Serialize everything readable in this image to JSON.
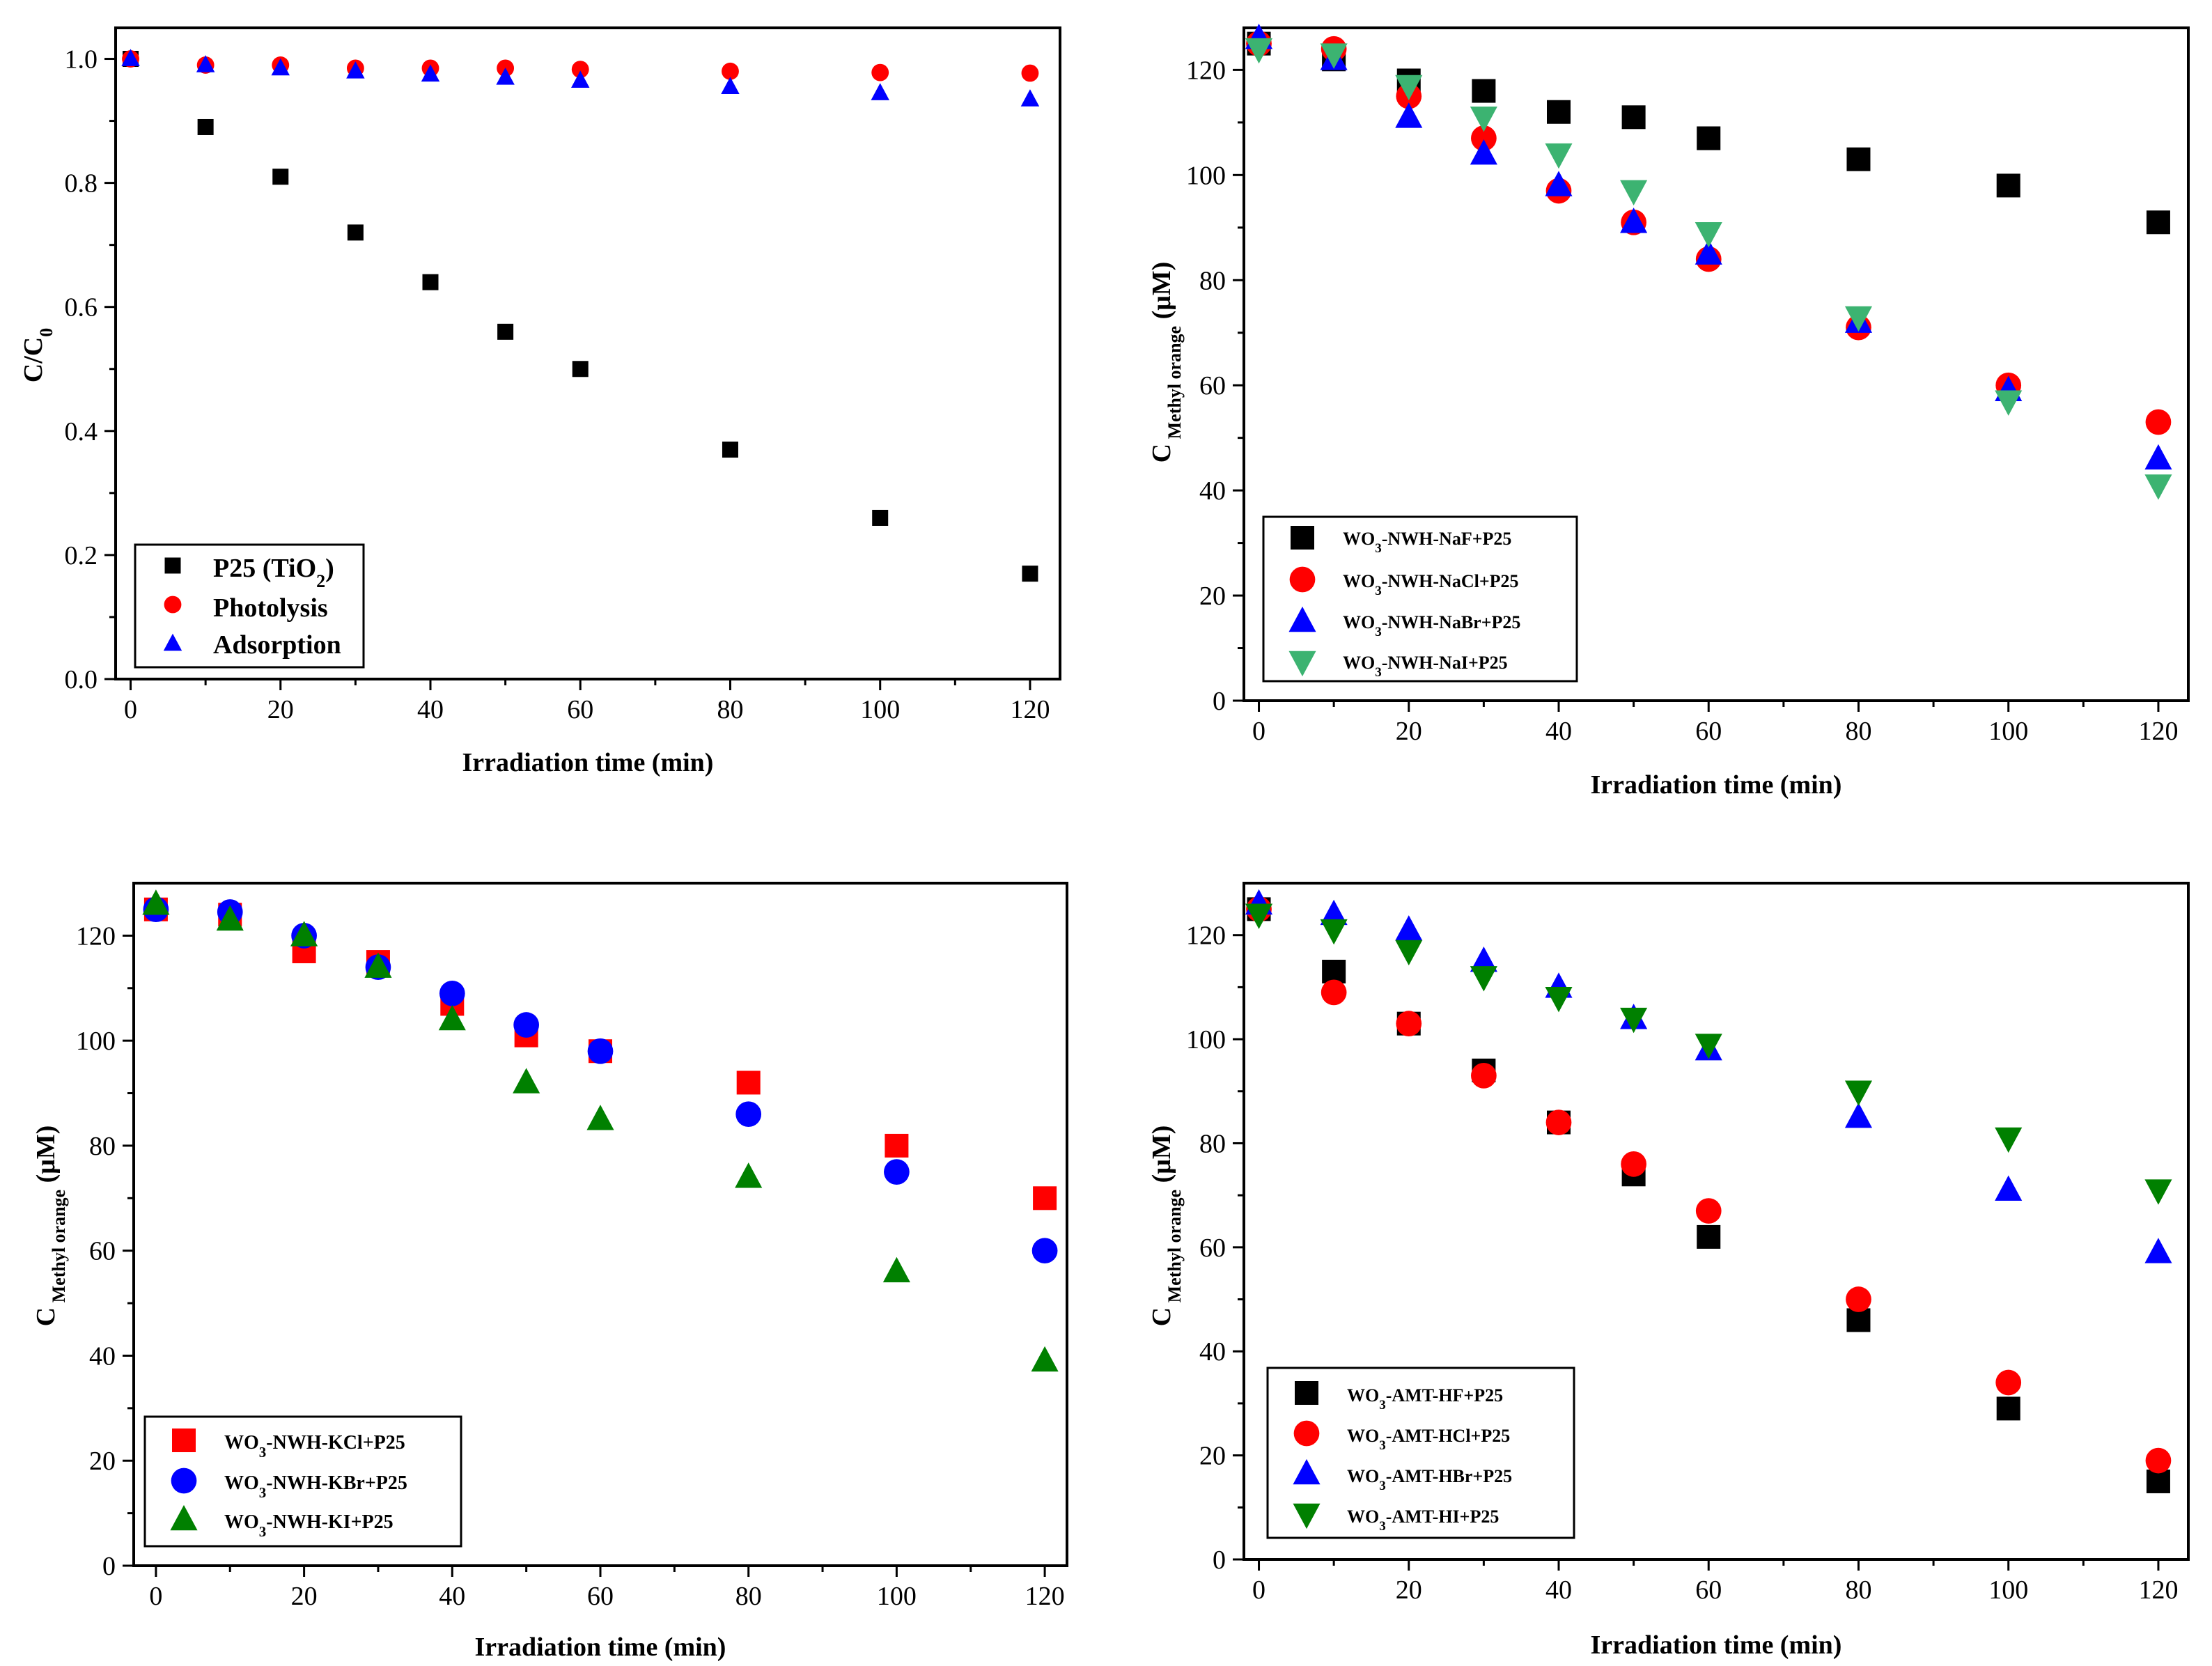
{
  "chart_data": [
    {
      "type": "scatter",
      "id": "a",
      "xlabel": "Irradiation time (min)",
      "ylabel": "C/C0",
      "xlim": [
        -2,
        124
      ],
      "ylim": [
        0,
        1.05
      ],
      "xticks": [
        0,
        20,
        40,
        60,
        80,
        100,
        120
      ],
      "yticks": [
        0.0,
        0.2,
        0.4,
        0.6,
        0.8,
        1.0
      ],
      "ydecimals": 1,
      "legend_position": "bottom-left",
      "series": [
        {
          "name": "P25 (TiO2)",
          "marker": "square",
          "color": "#000000",
          "x": [
            0,
            10,
            20,
            30,
            40,
            50,
            60,
            80,
            100,
            120
          ],
          "y": [
            1.0,
            0.89,
            0.81,
            0.72,
            0.64,
            0.56,
            0.5,
            0.37,
            0.26,
            0.17
          ]
        },
        {
          "name": "Photolysis",
          "marker": "circle",
          "color": "#ff0000",
          "x": [
            0,
            10,
            20,
            30,
            40,
            50,
            60,
            80,
            100,
            120
          ],
          "y": [
            1.0,
            0.99,
            0.99,
            0.985,
            0.985,
            0.985,
            0.983,
            0.98,
            0.978,
            0.977
          ]
        },
        {
          "name": "Adsorption",
          "marker": "triangle-up",
          "color": "#0000ff",
          "x": [
            0,
            10,
            20,
            30,
            40,
            50,
            60,
            80,
            100,
            120
          ],
          "y": [
            1.0,
            0.99,
            0.985,
            0.98,
            0.975,
            0.97,
            0.965,
            0.955,
            0.945,
            0.935
          ]
        }
      ]
    },
    {
      "type": "scatter",
      "id": "b",
      "xlabel": "Irradiation time (min)",
      "ylabel": "C Methyl orange (μM)",
      "xlim": [
        -2,
        124
      ],
      "ylim": [
        0,
        128
      ],
      "xticks": [
        0,
        20,
        40,
        60,
        80,
        100,
        120
      ],
      "yticks": [
        0,
        20,
        40,
        60,
        80,
        100,
        120
      ],
      "ydecimals": 0,
      "legend_position": "bottom-left",
      "series": [
        {
          "name": "WO3-NWH-NaF+P25",
          "marker": "square",
          "color": "#000000",
          "x": [
            0,
            10,
            20,
            30,
            40,
            50,
            60,
            80,
            100,
            120
          ],
          "y": [
            125,
            122,
            118,
            116,
            112,
            111,
            107,
            103,
            98,
            91
          ]
        },
        {
          "name": "WO3-NWH-NaCl+P25",
          "marker": "circle",
          "color": "#ff0000",
          "x": [
            0,
            10,
            20,
            30,
            40,
            50,
            60,
            80,
            100,
            120
          ],
          "y": [
            125,
            124,
            115,
            107,
            97,
            91,
            84,
            71,
            60,
            53
          ]
        },
        {
          "name": "WO3-NWH-NaBr+P25",
          "marker": "triangle-up",
          "color": "#0000ff",
          "x": [
            0,
            10,
            20,
            30,
            40,
            50,
            60,
            80,
            100,
            120
          ],
          "y": [
            126,
            122,
            111,
            104,
            98,
            91,
            85,
            72,
            59,
            46
          ]
        },
        {
          "name": "WO3-NWH-NaI+P25",
          "marker": "triangle-down",
          "color": "#3cb371",
          "x": [
            0,
            10,
            20,
            30,
            40,
            50,
            60,
            80,
            100,
            120
          ],
          "y": [
            124,
            123,
            117,
            111,
            104,
            97,
            89,
            73,
            57,
            41
          ]
        }
      ]
    },
    {
      "type": "scatter",
      "id": "c",
      "xlabel": "Irradiation time (min)",
      "ylabel": "C Methyl orange (μM)",
      "xlim": [
        -3,
        123
      ],
      "ylim": [
        0,
        130
      ],
      "xticks": [
        0,
        20,
        40,
        60,
        80,
        100,
        120
      ],
      "yticks": [
        0,
        20,
        40,
        60,
        80,
        100,
        120
      ],
      "ydecimals": 0,
      "legend_position": "bottom-left",
      "series": [
        {
          "name": "WO3-NWH-KCl+P25",
          "marker": "square",
          "color": "#ff0000",
          "x": [
            0,
            10,
            20,
            30,
            40,
            50,
            60,
            80,
            100,
            120
          ],
          "y": [
            125,
            124,
            117,
            115,
            107,
            101,
            98,
            92,
            80,
            70
          ]
        },
        {
          "name": "WO3-NWH-KBr+P25",
          "marker": "circle",
          "color": "#0000ff",
          "x": [
            0,
            10,
            20,
            30,
            40,
            50,
            60,
            80,
            100,
            120
          ],
          "y": [
            125,
            124.5,
            120,
            114,
            109,
            103,
            98,
            86,
            75,
            60
          ]
        },
        {
          "name": "WO3-NWH-KI+P25",
          "marker": "triangle-up",
          "color": "#008000",
          "x": [
            0,
            10,
            20,
            30,
            40,
            50,
            60,
            80,
            100,
            120
          ],
          "y": [
            126,
            123,
            120,
            114,
            104,
            92,
            85,
            74,
            56,
            39
          ]
        }
      ]
    },
    {
      "type": "scatter",
      "id": "d",
      "xlabel": "Irradiation time (min)",
      "ylabel": "C Methyl orange (μM)",
      "xlim": [
        -2,
        124
      ],
      "ylim": [
        0,
        130
      ],
      "xticks": [
        0,
        20,
        40,
        60,
        80,
        100,
        120
      ],
      "yticks": [
        0,
        20,
        40,
        60,
        80,
        100,
        120
      ],
      "ydecimals": 0,
      "legend_position": "bottom-left",
      "series": [
        {
          "name": "WO3-AMT-HF+P25",
          "marker": "square",
          "color": "#000000",
          "x": [
            0,
            10,
            20,
            30,
            40,
            50,
            60,
            80,
            100,
            120
          ],
          "y": [
            125,
            113,
            103,
            94,
            84,
            74,
            62,
            46,
            29,
            15
          ]
        },
        {
          "name": "WO3-AMT-HCl+P25",
          "marker": "circle",
          "color": "#ff0000",
          "x": [
            0,
            10,
            20,
            30,
            40,
            50,
            60,
            80,
            100,
            120
          ],
          "y": [
            125,
            109,
            103,
            93,
            84,
            76,
            67,
            50,
            34,
            19
          ]
        },
        {
          "name": "WO3-AMT-HBr+P25",
          "marker": "triangle-up",
          "color": "#0000ff",
          "x": [
            0,
            10,
            20,
            30,
            40,
            50,
            60,
            80,
            100,
            120
          ],
          "y": [
            126,
            124,
            121,
            115,
            110,
            104,
            98,
            85,
            71,
            59
          ]
        },
        {
          "name": "WO3-AMT-HI+P25",
          "marker": "triangle-down",
          "color": "#008000",
          "x": [
            0,
            10,
            20,
            30,
            40,
            50,
            60,
            80,
            100,
            120
          ],
          "y": [
            124,
            121,
            117,
            112,
            108,
            104,
            99,
            90,
            81,
            71
          ]
        }
      ]
    }
  ]
}
